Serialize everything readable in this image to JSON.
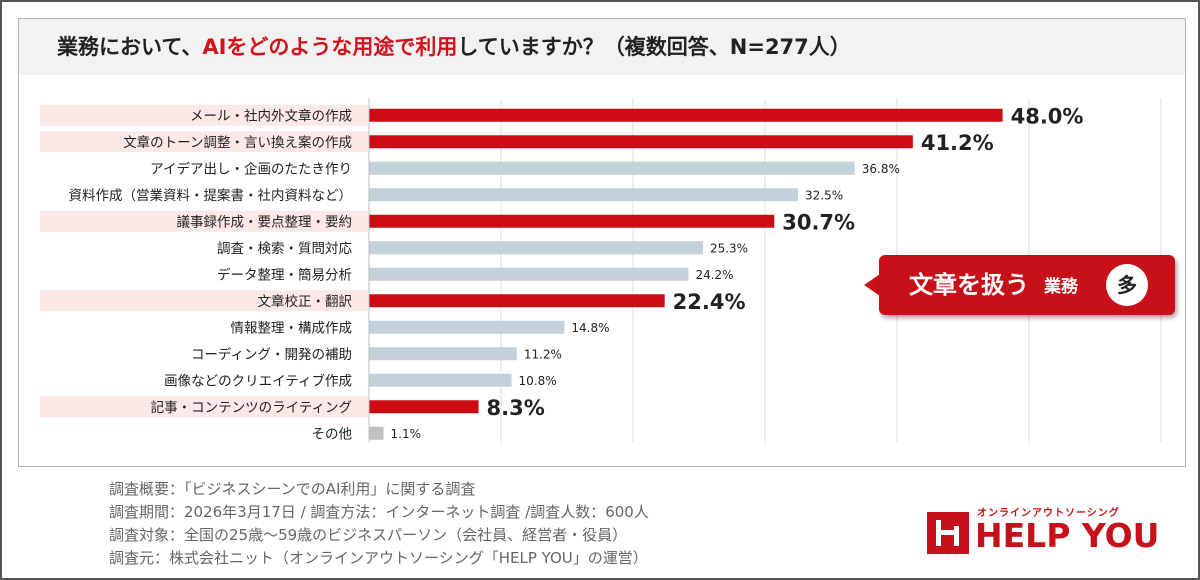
{
  "title": {
    "prefix": "業務において、",
    "highlight": "AIをどのような用途で利用",
    "suffix": "していますか？（複数回答、N=277人）"
  },
  "callout": {
    "main": "文章を扱う",
    "sub": "業務",
    "badge": "多"
  },
  "notes": [
    "調査概要：「ビジネスシーンでのAI利用」に関する調査",
    "調査期間：2026年3月17日 / 調査方法：インターネット調査 /調査人数：600人",
    "調査対象：全国の25歳〜59歳のビジネスパーソン（会社員、経営者・役員）",
    "調査元：株式会社ニット（オンラインアウトソーシング「HELP YOU」の運営）"
  ],
  "logo": {
    "sub": "オンラインアウトソーシング",
    "text": "HELP YOU"
  },
  "colors": {
    "highlight_bar": "#cc0b13",
    "normal_bar": "#c3d1da",
    "other_bar": "#c0c0c0",
    "highlight_label_bg": "#fde8e8"
  },
  "chart_data": {
    "type": "bar",
    "orientation": "horizontal",
    "grid": true,
    "xlim": [
      0,
      60
    ],
    "categories": [
      "メール・社内外文章の作成",
      "文章のトーン調整・言い換え案の作成",
      "アイデア出し・企画のたたき作り",
      "資料作成（営業資料・提案書・社内資料など）",
      "議事録作成・要点整理・要約",
      "調査・検索・質問対応",
      "データ整理・簡易分析",
      "文章校正・翻訳",
      "情報整理・構成作成",
      "コーディング・開発の補助",
      "画像などのクリエイティブ作成",
      "記事・コンテンツのライティング",
      "その他"
    ],
    "values": [
      48.0,
      41.2,
      36.8,
      32.5,
      30.7,
      25.3,
      24.2,
      22.4,
      14.8,
      11.2,
      10.8,
      8.3,
      1.1
    ],
    "value_labels": [
      "48.0%",
      "41.2%",
      "36.8%",
      "32.5%",
      "30.7%",
      "25.3%",
      "24.2%",
      "22.4%",
      "14.8%",
      "11.2%",
      "10.8%",
      "8.3%",
      "1.1%"
    ],
    "highlighted": [
      true,
      true,
      false,
      false,
      true,
      false,
      false,
      true,
      false,
      false,
      false,
      true,
      false
    ],
    "other_index": 12
  }
}
